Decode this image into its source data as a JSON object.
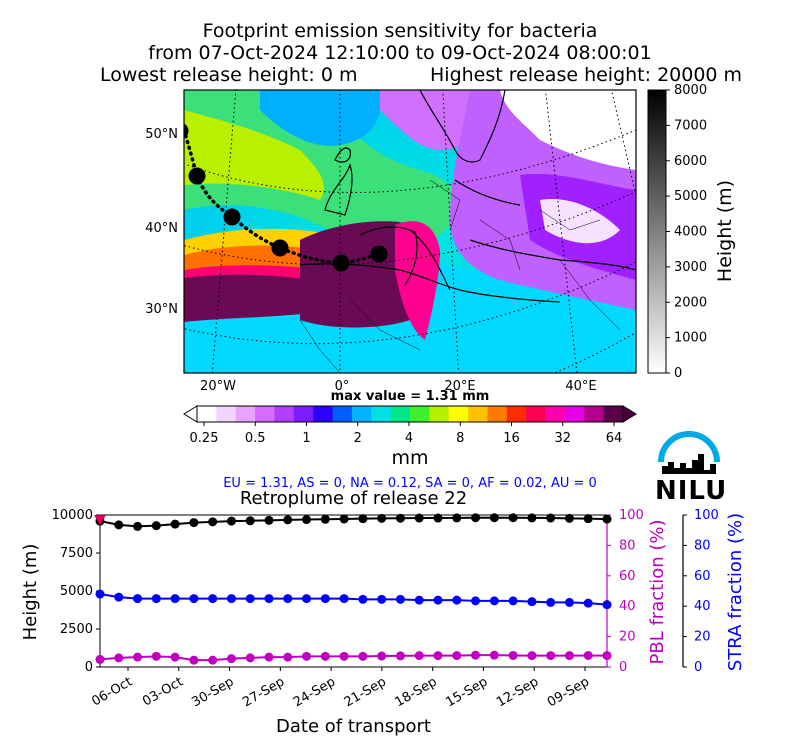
{
  "header": {
    "title_line1": "Footprint emission sensitivity for bacteria",
    "title_line2": "from 07-Oct-2024 12:10:00 to 09-Oct-2024 08:00:01",
    "lowest_release": "Lowest release height: 0 m",
    "highest_release": "Highest release height: 20000 m"
  },
  "map": {
    "lat_labels": [
      "50°N",
      "40°N",
      "30°N"
    ],
    "lon_labels": [
      "20°W",
      "0°",
      "20°E",
      "40°E"
    ],
    "height_colorbar": {
      "label": "Height (m)",
      "ticks": [
        "8000",
        "7000",
        "6000",
        "5000",
        "4000",
        "3000",
        "2000",
        "1000",
        "0"
      ]
    },
    "max_value_text": "max value = 1.31 mm",
    "sensitivity_colorbar": {
      "unit": "mm",
      "ticks": [
        "0.25",
        "0.5",
        "1",
        "2",
        "4",
        "8",
        "16",
        "32",
        "64"
      ],
      "colors": [
        "#ffffff",
        "#f3d4ff",
        "#e8a3ff",
        "#d66bff",
        "#b23cff",
        "#7a1cff",
        "#2a00ff",
        "#0060ff",
        "#00b2ff",
        "#00e0e6",
        "#00e68a",
        "#3cf02a",
        "#b4f000",
        "#ffff00",
        "#ffc000",
        "#ff7a00",
        "#ff2a00",
        "#ff0055",
        "#ff00b0",
        "#e600e6",
        "#b4008c",
        "#5a004a"
      ]
    },
    "summary": "EU = 1.31,  AS = 0,  NA = 0.12,  SA = 0,  AF = 0.02,  AU = 0"
  },
  "logo": {
    "text": "NILU",
    "color": "#00a0e6"
  },
  "retroplume": {
    "title": "Retroplume of release 22",
    "xlabel": "Date of transport",
    "ylabel_left": "Height (m)",
    "ylabel_pbl": "PBL fraction (%)",
    "ylabel_stra": "STRA fraction (%)",
    "pbl_color": "#c000c0",
    "stra_color": "#0000ff"
  },
  "chart_data": {
    "type": "line",
    "title": "Retroplume of release 22",
    "xlabel": "Date of transport",
    "ylabel": "Height (m)",
    "x_ticks": [
      "06-Oct",
      "03-Oct",
      "30-Sep",
      "27-Sep",
      "24-Sep",
      "21-Sep",
      "18-Sep",
      "15-Sep",
      "12-Sep",
      "09-Sep"
    ],
    "ylim": [
      0,
      10000
    ],
    "y_ticks": [
      0,
      2500,
      5000,
      7500,
      10000
    ],
    "pbl_ylim": [
      0,
      100
    ],
    "pbl_ticks": [
      0,
      20,
      40,
      60,
      80,
      100
    ],
    "stra_ylim": [
      0,
      100
    ],
    "stra_ticks": [
      0,
      20,
      40,
      60,
      80,
      100
    ],
    "series": [
      {
        "color": "#000000",
        "axis": "height",
        "values": [
          9600,
          9350,
          9250,
          9300,
          9400,
          9500,
          9550,
          9600,
          9620,
          9650,
          9680,
          9700,
          9720,
          9740,
          9760,
          9780,
          9790,
          9800,
          9800,
          9810,
          9820,
          9820,
          9820,
          9810,
          9800,
          9780,
          9760,
          9730
        ]
      },
      {
        "color": "#0000ff",
        "axis": "stra",
        "values": [
          48,
          46,
          45,
          45,
          45,
          45,
          45,
          45,
          45,
          45,
          45,
          45,
          45,
          45,
          44.5,
          44.5,
          44.5,
          44,
          44,
          44,
          43.5,
          43.5,
          43.5,
          43,
          42.5,
          42.5,
          42,
          41
        ]
      },
      {
        "color": "#c000c0",
        "axis": "pbl",
        "values": [
          5,
          6,
          6.5,
          7,
          6.5,
          4.5,
          4.5,
          5.5,
          6,
          6.5,
          6.5,
          7,
          7,
          7,
          7,
          7.2,
          7.3,
          7.5,
          7.5,
          7.5,
          7.8,
          7.8,
          7.6,
          7.5,
          7.5,
          7.5,
          7.6,
          7.5
        ]
      }
    ]
  }
}
